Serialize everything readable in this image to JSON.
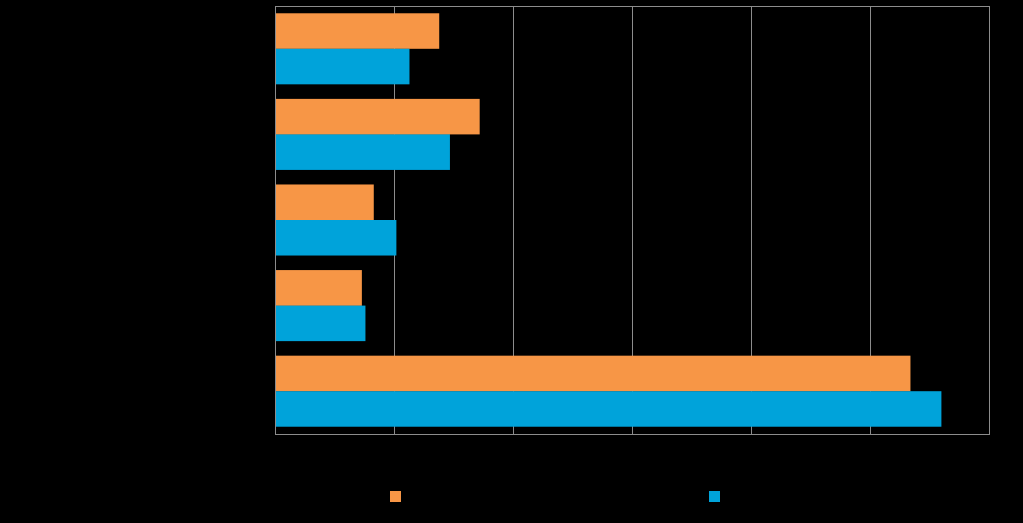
{
  "chart_data": {
    "type": "bar",
    "orientation": "horizontal",
    "categories": [
      "",
      "",
      "",
      "",
      ""
    ],
    "series": [
      {
        "values": [
          13.8,
          17.2,
          8.3,
          7.3,
          53.4
        ]
      },
      {
        "values": [
          11.3,
          14.7,
          10.2,
          7.6,
          56.0
        ]
      }
    ],
    "xlim": [
      0,
      60
    ],
    "x_ticks": [
      0,
      10,
      20,
      30,
      40,
      50,
      60
    ],
    "grid": true,
    "legend_position": "bottom",
    "title": "",
    "xlabel": "",
    "ylabel": ""
  },
  "colors": {
    "background": "#000000",
    "series": [
      "#F79646",
      "#00A3DA"
    ],
    "grid": "#8C8C8C",
    "axis": "#8C8C8C"
  }
}
